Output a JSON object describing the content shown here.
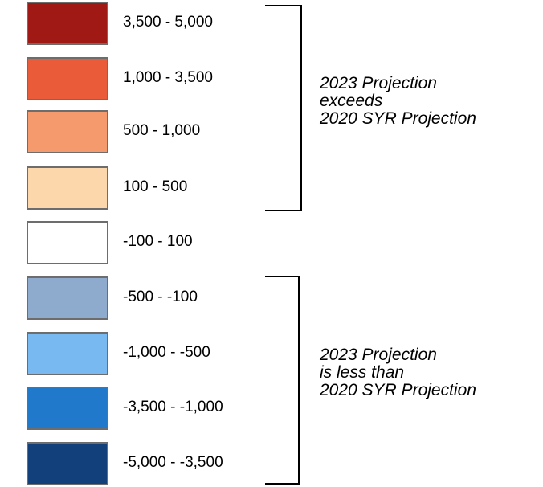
{
  "legend": {
    "items": [
      {
        "label": "3,500 - 5,000",
        "color": "#a11914"
      },
      {
        "label": "1,000 - 3,500",
        "color": "#e95b39"
      },
      {
        "label": "500 - 1,000",
        "color": "#f49a6c"
      },
      {
        "label": "100 - 500",
        "color": "#fcd7ab"
      },
      {
        "label": "-100 - 100",
        "color": "#ffffff"
      },
      {
        "label": "-500 - -100",
        "color": "#8eaacd"
      },
      {
        "label": "-1,000 - -500",
        "color": "#78b9f1"
      },
      {
        "label": "-3,500 - -1,000",
        "color": "#2079ca"
      },
      {
        "label": "-5,000 - -3,500",
        "color": "#12407b"
      }
    ],
    "swatch_border_color": "#6d6d6d"
  },
  "groups": {
    "exceeds": {
      "lines": [
        "2023 Projection",
        "exceeds",
        "2020 SYR Projection"
      ]
    },
    "less_than": {
      "lines": [
        "2023 Projection",
        "is less than",
        "2020 SYR Projection"
      ]
    }
  }
}
